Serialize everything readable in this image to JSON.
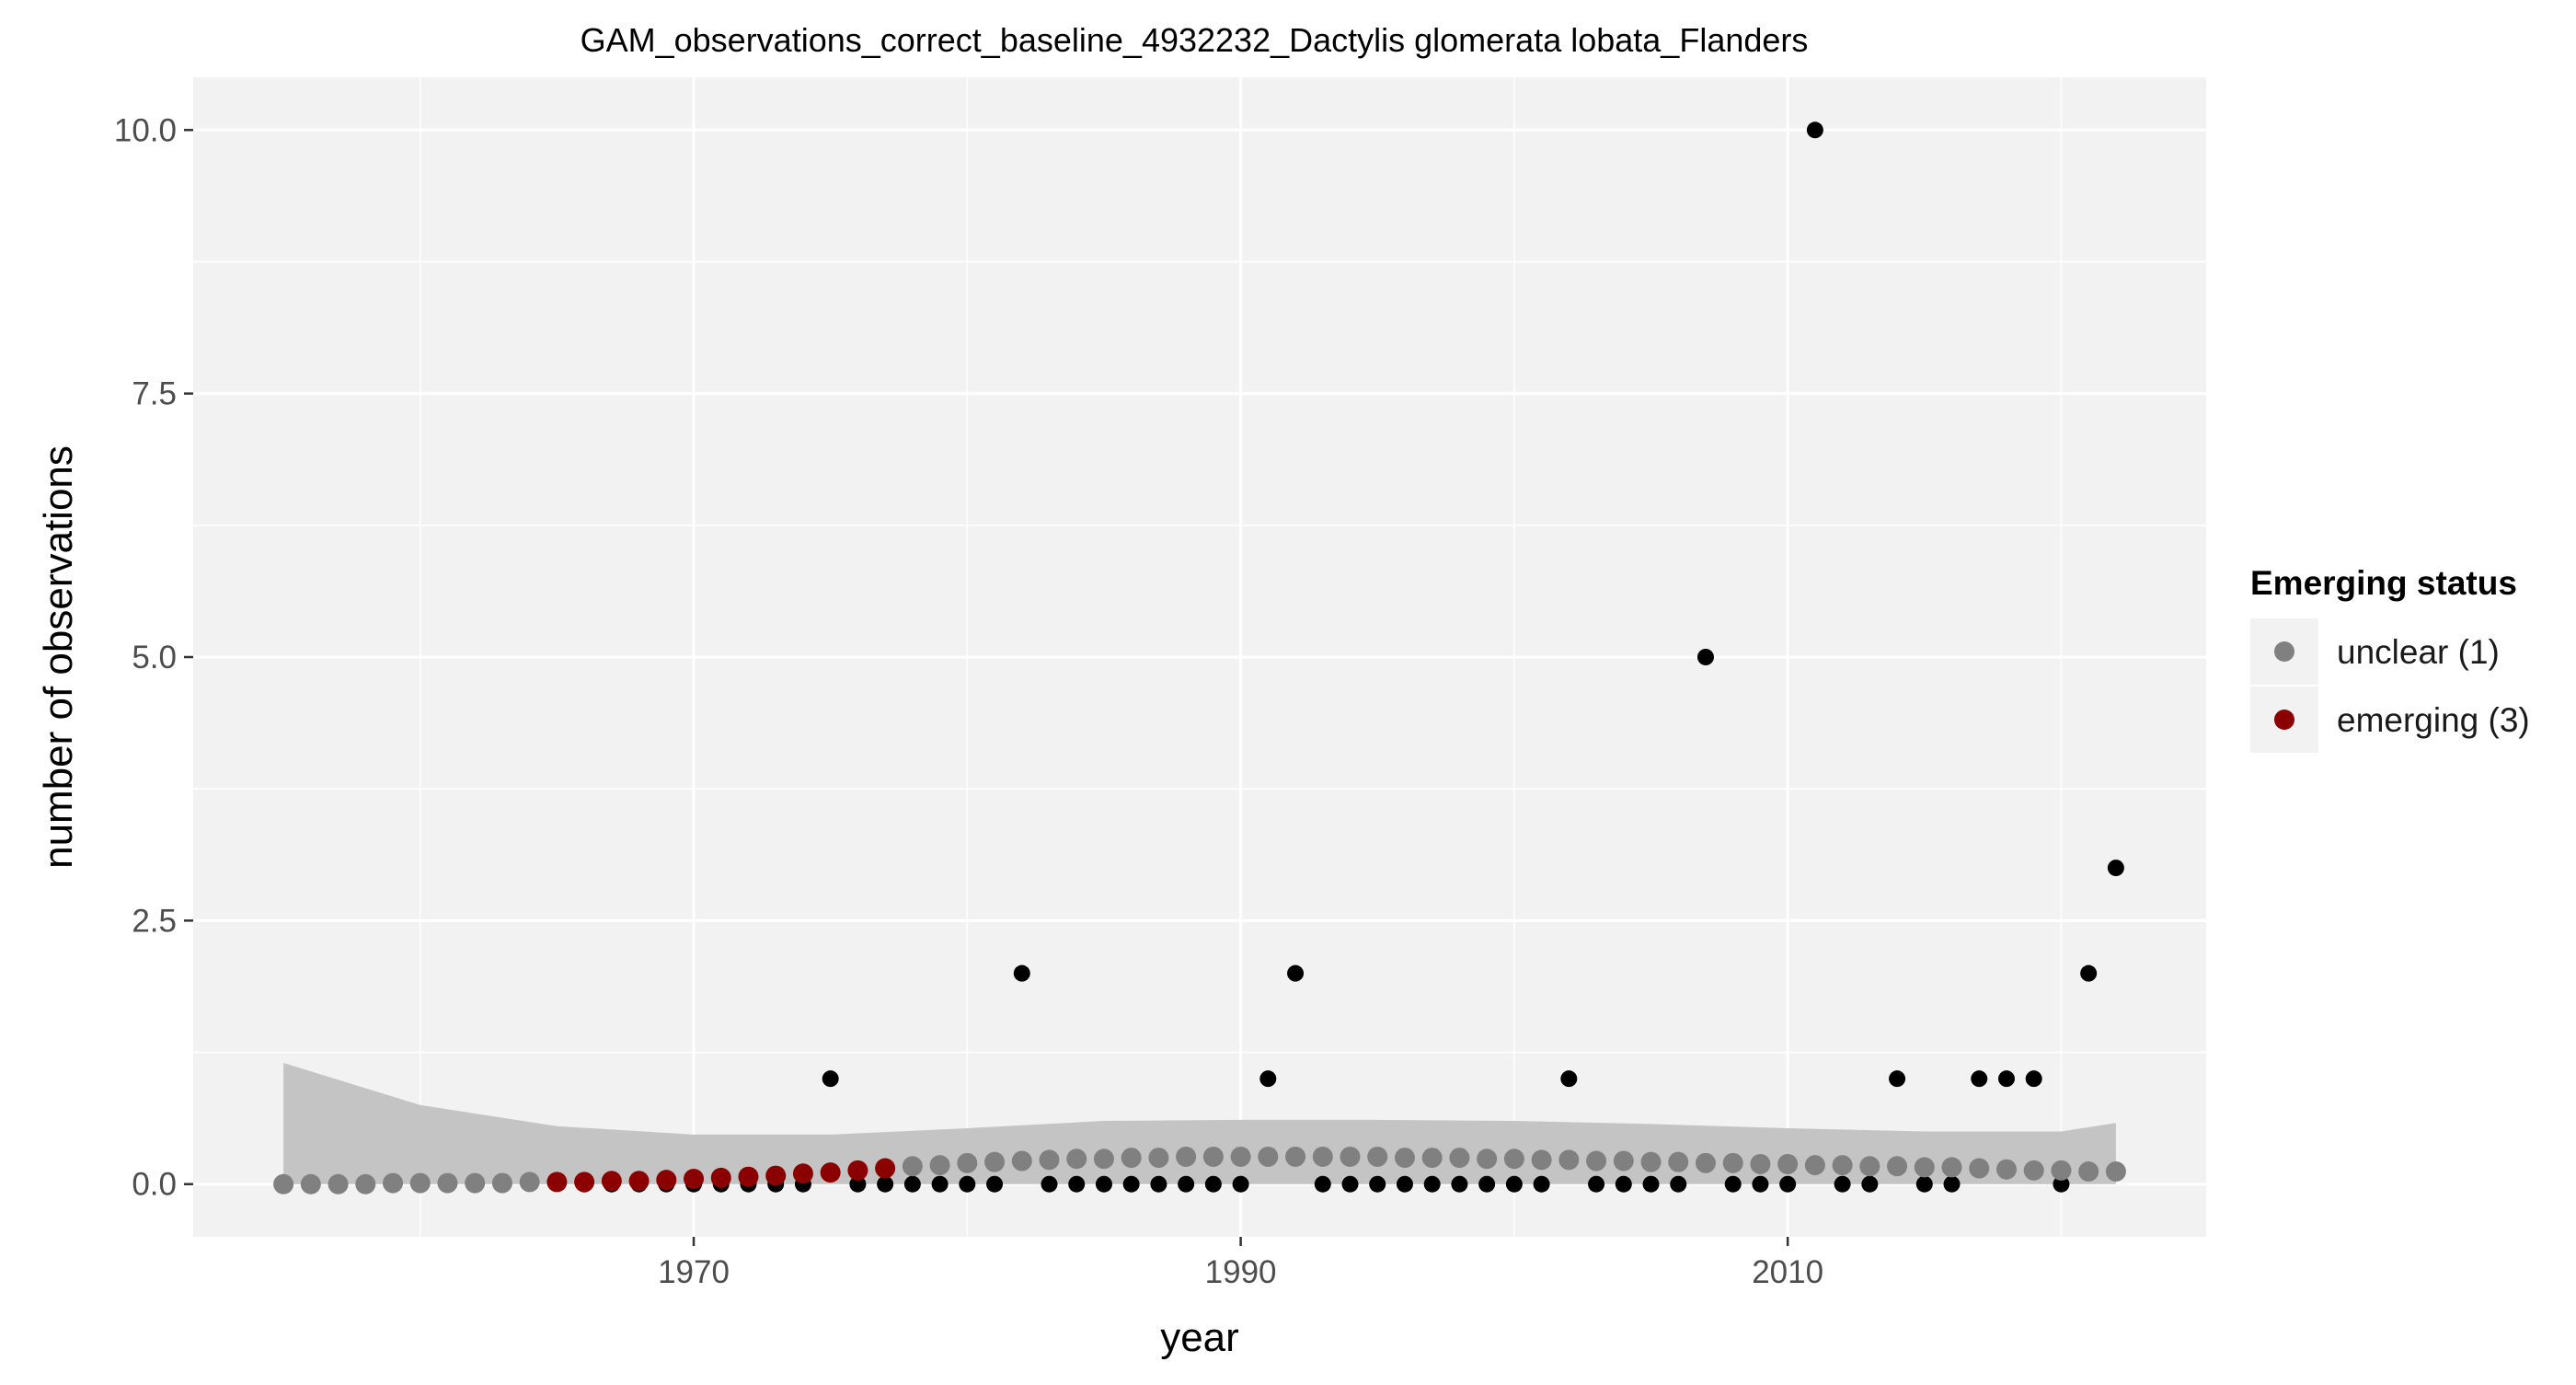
{
  "chart_data": {
    "type": "scatter",
    "title": "GAM_observations_correct_baseline_4932232_Dactylis glomerata lobata_Flanders",
    "xlabel": "year",
    "ylabel": "number of observations",
    "xlim": [
      1951.7,
      2025.3
    ],
    "ylim": [
      -0.5,
      10.5
    ],
    "x_ticks": [
      1970,
      1990,
      2010
    ],
    "x_tick_labels": [
      "1970",
      "1990",
      "2010"
    ],
    "x_minor_ticks": [
      1960,
      1980,
      2000,
      2020
    ],
    "y_ticks": [
      0,
      2.5,
      5,
      7.5,
      10
    ],
    "y_tick_labels": [
      "0.0",
      "2.5",
      "5.0",
      "7.5",
      "10.0"
    ],
    "grid": true,
    "panel_background": "#f2f2f2",
    "legend": {
      "title": "Emerging status",
      "position": "right",
      "entries": [
        {
          "label": "unclear (1)",
          "color": "#808080"
        },
        {
          "label": "emerging (3)",
          "color": "#8b0000"
        }
      ]
    },
    "observations": {
      "color": "#000000",
      "x": [
        1966,
        1967,
        1968,
        1969,
        1970,
        1971,
        1972,
        1973,
        1974,
        1975,
        1976,
        1977,
        1978,
        1979,
        1980,
        1981,
        1982,
        1983,
        1984,
        1985,
        1986,
        1987,
        1988,
        1989,
        1990,
        1991,
        1992,
        1993,
        1994,
        1995,
        1996,
        1997,
        1998,
        1999,
        2000,
        2001,
        2002,
        2003,
        2004,
        2005,
        2006,
        2007,
        2008,
        2009,
        2010,
        2011,
        2012,
        2013,
        2014,
        2015,
        2016,
        2017,
        2018,
        2019,
        2020,
        2021,
        2022
      ],
      "y": [
        0,
        0,
        0,
        0,
        0,
        0,
        0,
        0,
        0,
        1,
        0,
        0,
        0,
        0,
        0,
        0,
        2,
        0,
        0,
        0,
        0,
        0,
        0,
        0,
        0,
        1,
        2,
        0,
        0,
        0,
        0,
        0,
        0,
        0,
        0,
        0,
        1,
        0,
        0,
        0,
        0,
        5,
        0,
        0,
        0,
        10,
        0,
        0,
        1,
        0,
        0,
        1,
        1,
        1,
        0,
        2,
        3
      ]
    },
    "gam_fit": {
      "x": [
        1955,
        1956,
        1957,
        1958,
        1959,
        1960,
        1961,
        1962,
        1963,
        1964,
        1965,
        1966,
        1967,
        1968,
        1969,
        1970,
        1971,
        1972,
        1973,
        1974,
        1975,
        1976,
        1977,
        1978,
        1979,
        1980,
        1981,
        1982,
        1983,
        1984,
        1985,
        1986,
        1987,
        1988,
        1989,
        1990,
        1991,
        1992,
        1993,
        1994,
        1995,
        1996,
        1997,
        1998,
        1999,
        2000,
        2001,
        2002,
        2003,
        2004,
        2005,
        2006,
        2007,
        2008,
        2009,
        2010,
        2011,
        2012,
        2013,
        2014,
        2015,
        2016,
        2017,
        2018,
        2019,
        2020,
        2021,
        2022
      ],
      "y": [
        0.0,
        0.0,
        0.0,
        0.0,
        0.01,
        0.01,
        0.01,
        0.01,
        0.01,
        0.02,
        0.02,
        0.02,
        0.03,
        0.03,
        0.04,
        0.05,
        0.06,
        0.07,
        0.08,
        0.1,
        0.11,
        0.13,
        0.15,
        0.17,
        0.18,
        0.2,
        0.21,
        0.22,
        0.23,
        0.24,
        0.24,
        0.25,
        0.25,
        0.26,
        0.26,
        0.26,
        0.26,
        0.26,
        0.26,
        0.26,
        0.26,
        0.25,
        0.25,
        0.25,
        0.24,
        0.24,
        0.23,
        0.23,
        0.22,
        0.22,
        0.21,
        0.21,
        0.2,
        0.2,
        0.19,
        0.19,
        0.18,
        0.18,
        0.17,
        0.17,
        0.16,
        0.16,
        0.15,
        0.14,
        0.13,
        0.13,
        0.12,
        0.12
      ],
      "status": [
        "unclear",
        "unclear",
        "unclear",
        "unclear",
        "unclear",
        "unclear",
        "unclear",
        "unclear",
        "unclear",
        "unclear",
        "emerging",
        "emerging",
        "emerging",
        "emerging",
        "emerging",
        "emerging",
        "emerging",
        "emerging",
        "emerging",
        "emerging",
        "emerging",
        "emerging",
        "emerging",
        "unclear",
        "unclear",
        "unclear",
        "unclear",
        "unclear",
        "unclear",
        "unclear",
        "unclear",
        "unclear",
        "unclear",
        "unclear",
        "unclear",
        "unclear",
        "unclear",
        "unclear",
        "unclear",
        "unclear",
        "unclear",
        "unclear",
        "unclear",
        "unclear",
        "unclear",
        "unclear",
        "unclear",
        "unclear",
        "unclear",
        "unclear",
        "unclear",
        "unclear",
        "unclear",
        "unclear",
        "unclear",
        "unclear",
        "unclear",
        "unclear",
        "unclear",
        "unclear",
        "unclear",
        "unclear",
        "unclear",
        "unclear",
        "unclear",
        "unclear",
        "unclear",
        "unclear"
      ]
    },
    "confidence_band": {
      "color": "#c4c4c4",
      "x": [
        1955,
        1960,
        1965,
        1970,
        1975,
        1980,
        1985,
        1990,
        1995,
        2000,
        2005,
        2010,
        2015,
        2020,
        2022
      ],
      "upper": [
        1.15,
        0.75,
        0.55,
        0.47,
        0.47,
        0.53,
        0.6,
        0.61,
        0.61,
        0.6,
        0.57,
        0.53,
        0.5,
        0.5,
        0.58
      ],
      "lower": [
        0,
        0,
        0,
        0,
        0,
        0,
        0,
        0,
        0,
        0,
        0,
        0,
        0,
        0,
        0
      ]
    }
  }
}
